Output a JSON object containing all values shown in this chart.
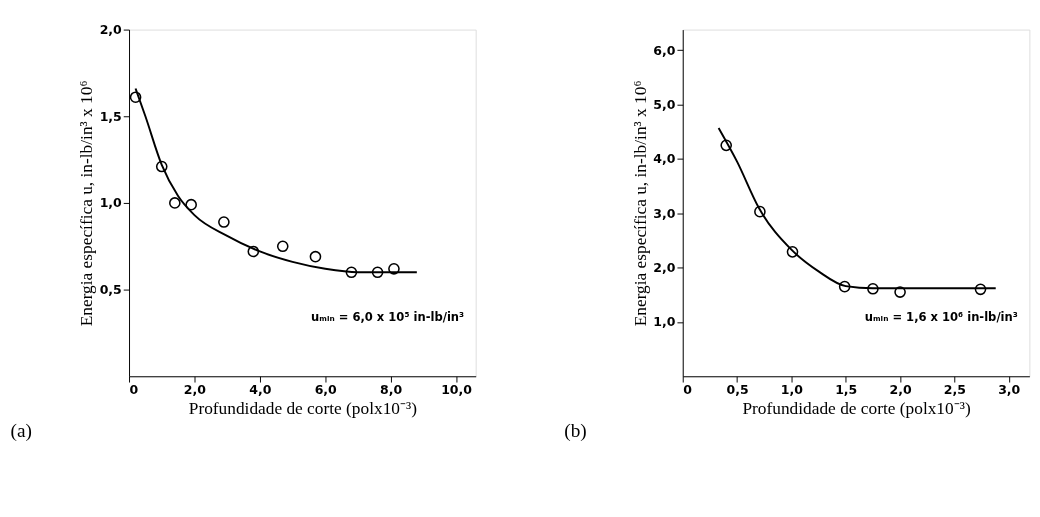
{
  "chart_data": [
    {
      "type": "scatter",
      "title": "(a)",
      "xlabel": "Profundidade de corte (polx10⁻³)",
      "ylabel": "Energia específica u, in-lb/in³ x 10⁶",
      "x": [
        0.2,
        1.0,
        1.4,
        1.9,
        2.9,
        3.8,
        4.7,
        5.7,
        6.8,
        7.6,
        8.1
      ],
      "grid": false,
      "series": [
        {
          "color": "#000000",
          "marker": "circle",
          "values": [
            1.61,
            1.21,
            1.0,
            0.99,
            0.89,
            0.72,
            0.75,
            0.69,
            0.6,
            0.6,
            0.62
          ]
        },
        {
          "type": "line",
          "marker": "none",
          "color": "#000000",
          "x": [
            0.2,
            0.5,
            1.0,
            1.5,
            2.0,
            3.0,
            4.0,
            5.0,
            6.0,
            7.0,
            8.8
          ],
          "values": [
            1.66,
            1.5,
            1.22,
            1.04,
            0.93,
            0.81,
            0.72,
            0.66,
            0.62,
            0.6,
            0.6
          ]
        }
      ],
      "xlim": [
        0,
        10.6
      ],
      "ylim": [
        0,
        2.0
      ],
      "xticks": [
        0,
        {
          "value": 2,
          "label": "2,0"
        },
        {
          "value": 4,
          "label": "4,0"
        },
        {
          "value": 6,
          "label": "6,0"
        },
        {
          "value": 8,
          "label": "8,0"
        },
        {
          "value": 10,
          "label": "10,0"
        }
      ],
      "yticks": [
        {
          "value": 0.5,
          "label": "0,5"
        },
        {
          "value": 1.0,
          "label": "1,0"
        },
        {
          "value": 1.5,
          "label": "1,5"
        },
        {
          "value": 2.0,
          "label": "2,0"
        }
      ],
      "annotations": [
        "uₘᵢₙ = 6,0 x 10⁵ in-lb/in³"
      ]
    },
    {
      "type": "scatter",
      "title": "(b)",
      "xlabel": "Profundidade de corte (polx10⁻³)",
      "ylabel": "Energia específica u, in-lb/in³ x 10⁶",
      "x": [
        0.4,
        0.71,
        1.01,
        1.49,
        1.75,
        2.0,
        2.74
      ],
      "grid": false,
      "series": [
        {
          "color": "#000000",
          "marker": "circle",
          "values": [
            4.25,
            3.03,
            2.29,
            1.65,
            1.61,
            1.55,
            1.6
          ]
        },
        {
          "type": "line",
          "marker": "none",
          "color": "#000000",
          "x": [
            0.33,
            0.5,
            0.7,
            1.0,
            1.25,
            1.5,
            1.75,
            2.88
          ],
          "values": [
            4.57,
            3.95,
            3.1,
            2.33,
            1.93,
            1.66,
            1.62,
            1.62
          ]
        }
      ],
      "xlim": [
        0,
        3.19
      ],
      "ylim": [
        0,
        6.38
      ],
      "xticks": [
        0,
        {
          "value": 0.5,
          "label": "0,5"
        },
        {
          "value": 1.0,
          "label": "1,0"
        },
        {
          "value": 1.5,
          "label": "1,5"
        },
        {
          "value": 2.0,
          "label": "2,0"
        },
        {
          "value": 2.5,
          "label": "2,5"
        },
        {
          "value": 3.0,
          "label": "3,0"
        }
      ],
      "yticks": [
        {
          "value": 1,
          "label": "1,0"
        },
        {
          "value": 2,
          "label": "2,0"
        },
        {
          "value": 3,
          "label": "3,0"
        },
        {
          "value": 4,
          "label": "4,0"
        },
        {
          "value": 5,
          "label": "5,0"
        },
        {
          "value": 6,
          "label": "6,0"
        }
      ],
      "annotations": [
        "uₘᵢₙ = 1,6 x 10⁶ in-lb/in³"
      ]
    }
  ]
}
